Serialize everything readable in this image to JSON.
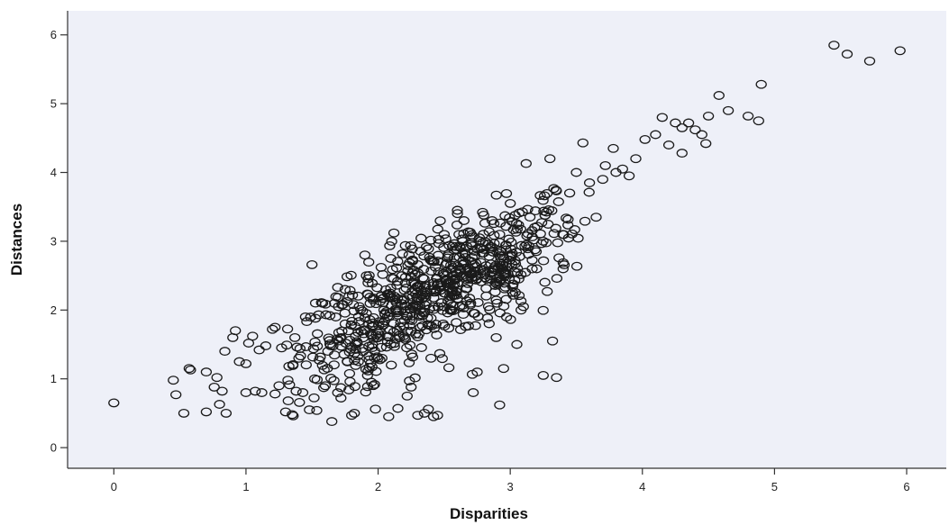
{
  "chart_data": {
    "type": "scatter",
    "title": "",
    "xlabel": "Disparities",
    "ylabel": "Distances",
    "xlim": [
      -0.35,
      6.3
    ],
    "ylim": [
      -0.3,
      6.35
    ],
    "xticks": [
      0,
      1,
      2,
      3,
      4,
      5,
      6
    ],
    "yticks": [
      0,
      1,
      2,
      3,
      4,
      5,
      6
    ],
    "xtick_labels": [
      "0",
      "1",
      "2",
      "3",
      "4",
      "5",
      "6"
    ],
    "ytick_labels": [
      "0",
      "1",
      "2",
      "3",
      "4",
      "5",
      "6"
    ],
    "grid": false,
    "marker": "open-circle",
    "colors": {
      "plot_background": "#eef0f8",
      "marker": "#1a1a1a",
      "axis": "#333333"
    },
    "series": [
      {
        "points": [
          [
            0.0,
            0.65
          ],
          [
            0.45,
            0.98
          ],
          [
            0.47,
            0.77
          ],
          [
            0.53,
            0.5
          ],
          [
            0.57,
            1.15
          ],
          [
            0.58,
            1.13
          ],
          [
            0.7,
            0.52
          ],
          [
            0.7,
            1.1
          ],
          [
            0.76,
            0.88
          ],
          [
            0.78,
            1.02
          ],
          [
            0.8,
            0.63
          ],
          [
            0.82,
            0.82
          ],
          [
            0.85,
            0.5
          ],
          [
            0.84,
            1.4
          ],
          [
            0.9,
            1.6
          ],
          [
            0.92,
            1.7
          ],
          [
            0.95,
            1.25
          ],
          [
            1.0,
            1.22
          ],
          [
            1.0,
            0.8
          ],
          [
            1.02,
            1.52
          ],
          [
            1.05,
            1.62
          ],
          [
            1.07,
            0.82
          ],
          [
            1.1,
            1.42
          ],
          [
            1.12,
            0.8
          ],
          [
            1.15,
            1.48
          ],
          [
            1.2,
            1.72
          ],
          [
            1.22,
            0.78
          ],
          [
            1.22,
            1.75
          ],
          [
            1.25,
            0.9
          ],
          [
            1.27,
            1.45
          ],
          [
            1.3,
            0.52
          ],
          [
            1.32,
            0.68
          ],
          [
            1.35,
            0.48
          ],
          [
            1.37,
            1.6
          ],
          [
            1.38,
            0.82
          ],
          [
            1.4,
            1.3
          ],
          [
            1.43,
            0.8
          ],
          [
            1.45,
            1.9
          ],
          [
            1.48,
            0.55
          ],
          [
            1.5,
            2.66
          ],
          [
            1.52,
            1.0
          ],
          [
            1.55,
            1.93
          ],
          [
            1.58,
            2.1
          ],
          [
            1.6,
            0.9
          ],
          [
            1.62,
            1.4
          ],
          [
            1.65,
            0.38
          ],
          [
            1.7,
            2.05
          ],
          [
            1.72,
            1.6
          ],
          [
            1.75,
            2.3
          ],
          [
            1.78,
            2.2
          ],
          [
            1.8,
            0.47
          ],
          [
            1.82,
            0.5
          ],
          [
            1.83,
            1.5
          ],
          [
            1.85,
            1.25
          ],
          [
            1.9,
            2.8
          ],
          [
            1.92,
            1.05
          ],
          [
            1.95,
            0.95
          ],
          [
            1.98,
            0.56
          ],
          [
            2.0,
            1.3
          ],
          [
            2.02,
            2.2
          ],
          [
            2.05,
            1.95
          ],
          [
            2.08,
            0.45
          ],
          [
            2.1,
            1.2
          ],
          [
            2.12,
            3.12
          ],
          [
            2.15,
            0.57
          ],
          [
            2.18,
            2.5
          ],
          [
            2.2,
            1.85
          ],
          [
            2.22,
            0.75
          ],
          [
            2.25,
            0.88
          ],
          [
            2.28,
            2.05
          ],
          [
            2.3,
            0.47
          ],
          [
            2.32,
            1.75
          ],
          [
            2.35,
            0.5
          ],
          [
            2.38,
            0.56
          ],
          [
            2.4,
            1.3
          ],
          [
            2.42,
            0.45
          ],
          [
            2.45,
            0.47
          ],
          [
            2.48,
            2.4
          ],
          [
            2.5,
            3.1
          ],
          [
            2.55,
            2.65
          ],
          [
            2.6,
            3.45
          ],
          [
            2.65,
            3.3
          ],
          [
            2.7,
            2.1
          ],
          [
            2.72,
            0.8
          ],
          [
            2.75,
            1.1
          ],
          [
            2.8,
            3.38
          ],
          [
            2.85,
            2.5
          ],
          [
            2.9,
            2.1
          ],
          [
            2.92,
            0.62
          ],
          [
            2.95,
            1.15
          ],
          [
            3.0,
            3.55
          ],
          [
            3.05,
            1.5
          ],
          [
            3.1,
            2.05
          ],
          [
            3.12,
            4.13
          ],
          [
            3.2,
            2.6
          ],
          [
            3.25,
            1.05
          ],
          [
            3.28,
            2.27
          ],
          [
            3.3,
            4.2
          ],
          [
            3.32,
            1.55
          ],
          [
            3.35,
            1.02
          ],
          [
            3.4,
            2.6
          ],
          [
            3.45,
            3.7
          ],
          [
            3.5,
            4.0
          ],
          [
            3.55,
            4.43
          ],
          [
            3.6,
            3.85
          ],
          [
            3.65,
            3.35
          ],
          [
            3.7,
            3.9
          ],
          [
            3.72,
            4.1
          ],
          [
            3.78,
            4.35
          ],
          [
            3.8,
            4.0
          ],
          [
            3.85,
            4.05
          ],
          [
            3.9,
            3.95
          ],
          [
            3.95,
            4.2
          ],
          [
            4.02,
            4.48
          ],
          [
            4.1,
            4.55
          ],
          [
            4.15,
            4.8
          ],
          [
            4.2,
            4.4
          ],
          [
            4.25,
            4.72
          ],
          [
            4.3,
            4.65
          ],
          [
            4.3,
            4.28
          ],
          [
            4.35,
            4.72
          ],
          [
            4.4,
            4.62
          ],
          [
            4.45,
            4.55
          ],
          [
            4.48,
            4.42
          ],
          [
            4.5,
            4.82
          ],
          [
            4.58,
            5.12
          ],
          [
            4.65,
            4.9
          ],
          [
            4.8,
            4.82
          ],
          [
            4.88,
            4.75
          ],
          [
            4.9,
            5.28
          ],
          [
            5.45,
            5.85
          ],
          [
            5.55,
            5.72
          ],
          [
            5.72,
            5.62
          ],
          [
            5.95,
            5.77
          ]
        ]
      }
    ]
  }
}
